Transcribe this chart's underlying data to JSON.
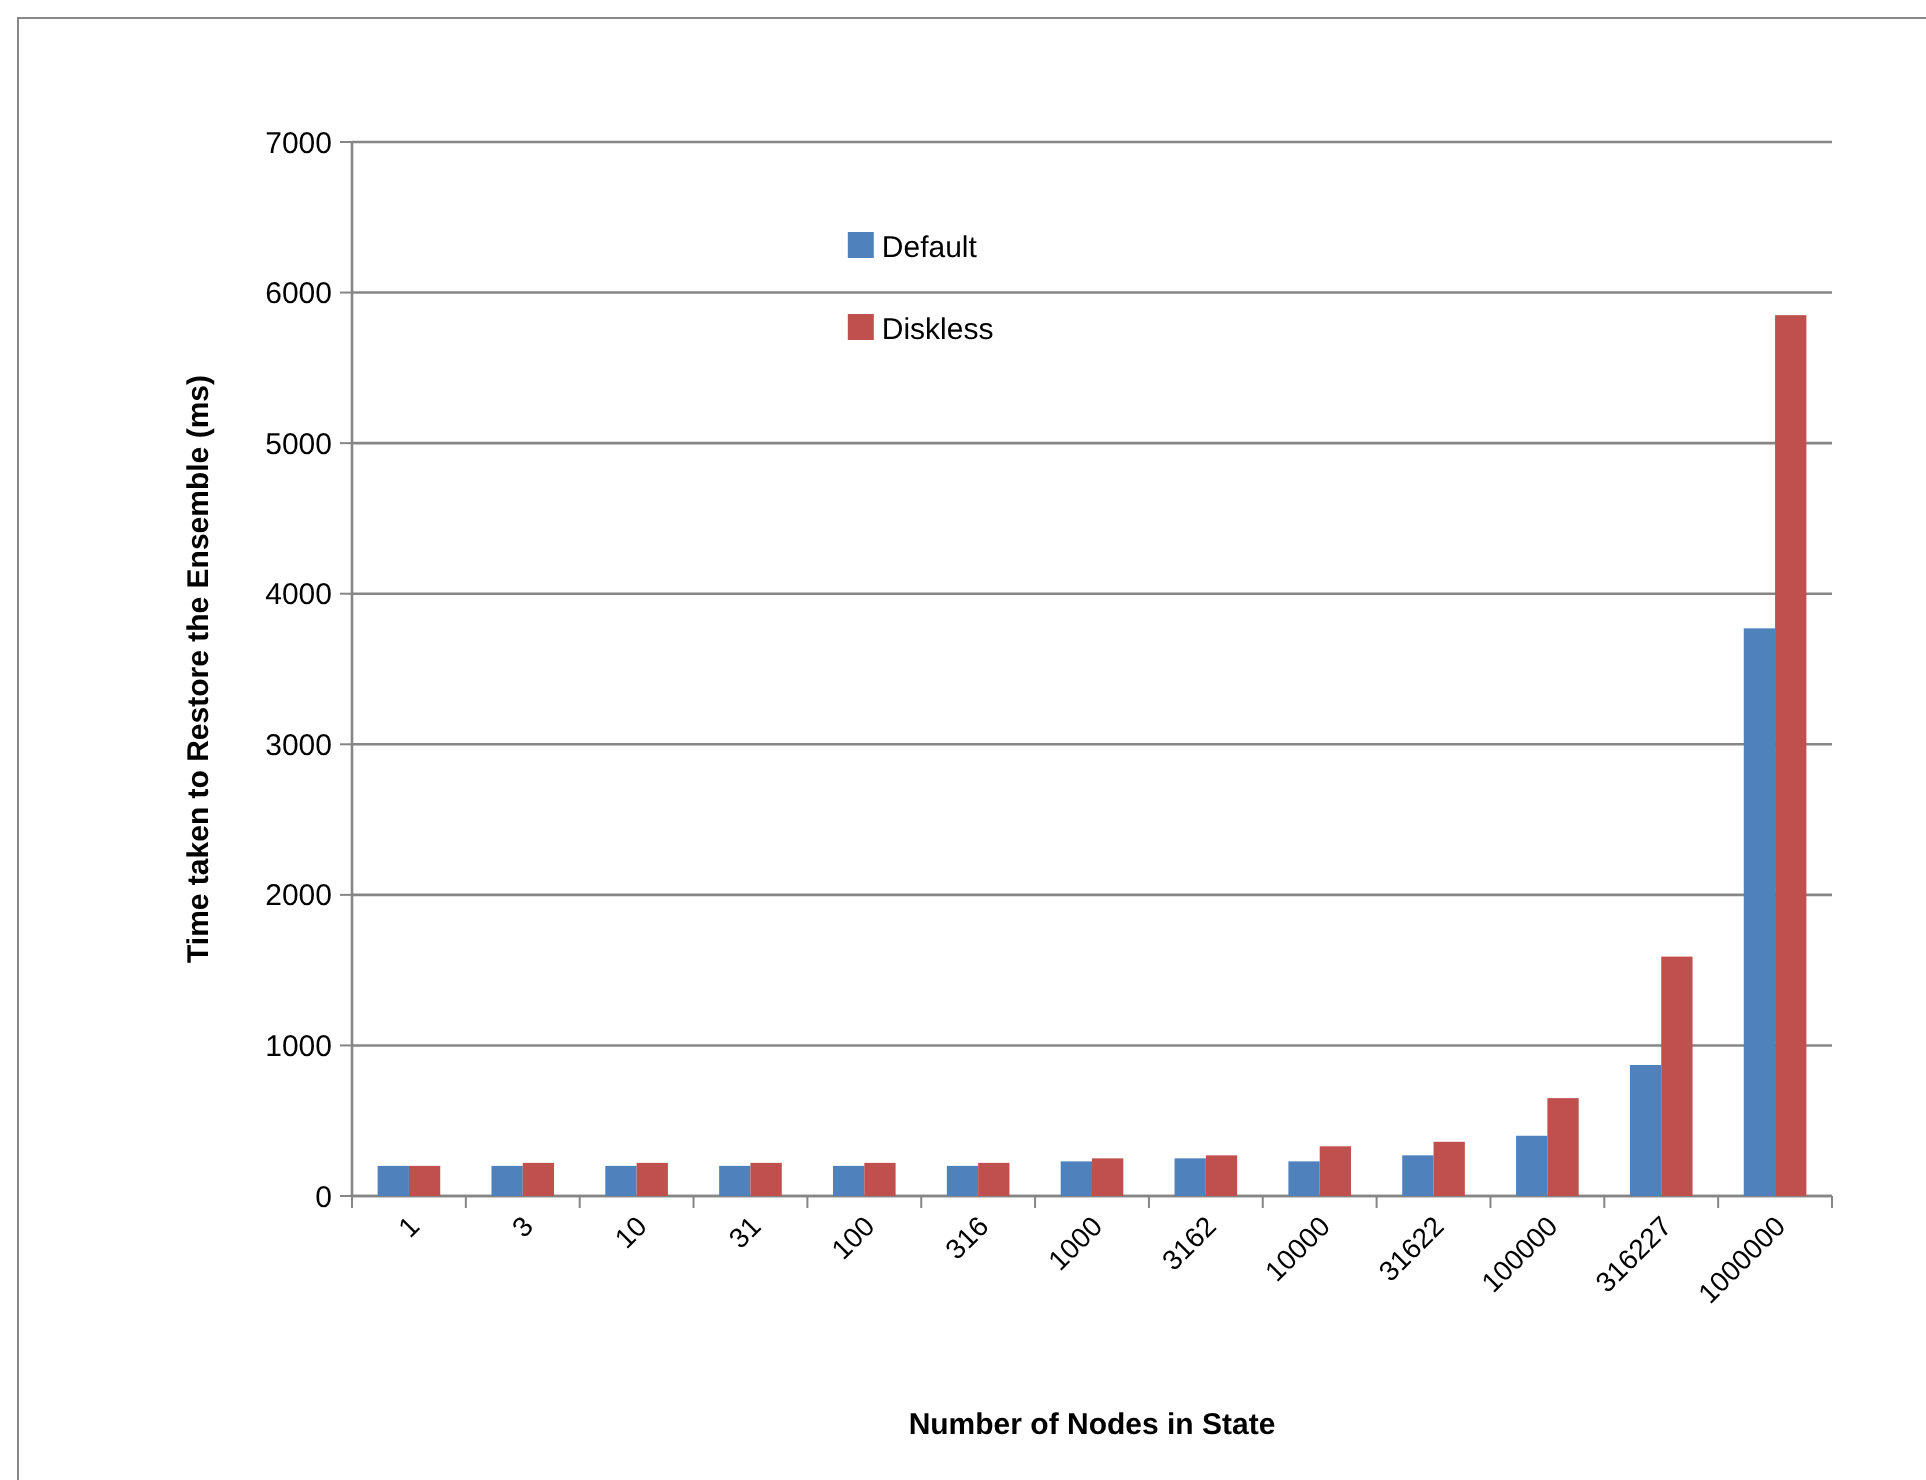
{
  "chart_data": {
    "type": "bar",
    "xlabel": "Number of Nodes in State",
    "ylabel": "Time taken to Restore the Ensemble (ms)",
    "categories": [
      "1",
      "3",
      "10",
      "31",
      "100",
      "316",
      "1000",
      "3162",
      "10000",
      "31622",
      "100000",
      "316227",
      "1000000"
    ],
    "series": [
      {
        "name": "Default",
        "color": "#4f81bd",
        "values": [
          200,
          200,
          200,
          200,
          200,
          200,
          230,
          250,
          230,
          270,
          400,
          870,
          3770
        ]
      },
      {
        "name": "Diskless",
        "color": "#c0504d",
        "values": [
          200,
          220,
          220,
          220,
          220,
          220,
          250,
          270,
          330,
          360,
          650,
          1590,
          5850
        ]
      }
    ],
    "ylim": [
      0,
      7000
    ],
    "yticks": [
      0,
      1000,
      2000,
      3000,
      4000,
      5000,
      6000,
      7000
    ],
    "grid": "y",
    "legend": "top"
  }
}
